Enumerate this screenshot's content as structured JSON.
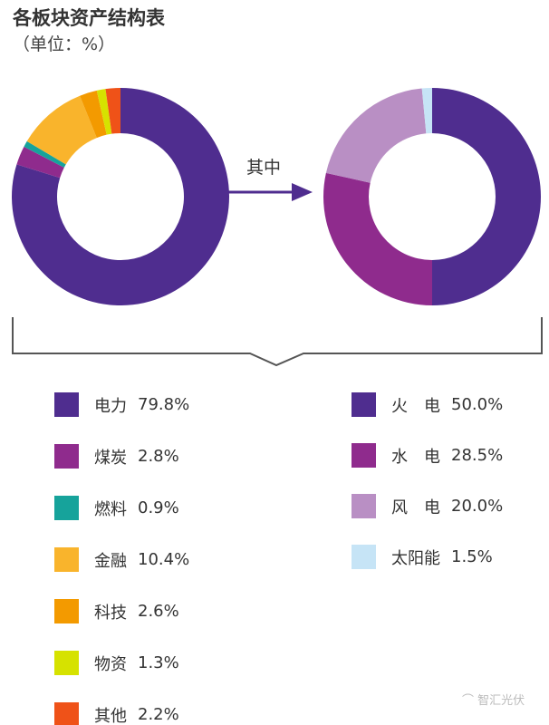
{
  "title": "各板块资产结构表",
  "subtitle": "（单位：%）",
  "arrow_label": "其中",
  "watermark": "智汇光伏",
  "chart_data": [
    {
      "type": "pie",
      "donut": true,
      "categories": [
        "电力",
        "煤炭",
        "燃料",
        "金融",
        "科技",
        "物资",
        "其他"
      ],
      "values": [
        79.8,
        2.8,
        0.9,
        10.4,
        2.6,
        1.3,
        2.2
      ],
      "value_labels": [
        "79.8%",
        "2.8%",
        "0.9%",
        "10.4%",
        "2.6%",
        "1.3%",
        "2.2%"
      ],
      "colors": [
        "#4f2d8f",
        "#8f2b8d",
        "#16a39b",
        "#f9b42c",
        "#f39a00",
        "#d6e200",
        "#ef5218"
      ],
      "legend_position": "bottom-left"
    },
    {
      "type": "pie",
      "donut": true,
      "categories": [
        "火　电",
        "水　电",
        "风　电",
        "太阳能"
      ],
      "values": [
        50.0,
        28.5,
        20.0,
        1.5
      ],
      "value_labels": [
        "50.0%",
        "28.5%",
        "20.0%",
        "1.5%"
      ],
      "colors": [
        "#4f2d8f",
        "#8f2b8d",
        "#b98fc4",
        "#c6e4f6"
      ],
      "legend_position": "bottom-right"
    }
  ]
}
